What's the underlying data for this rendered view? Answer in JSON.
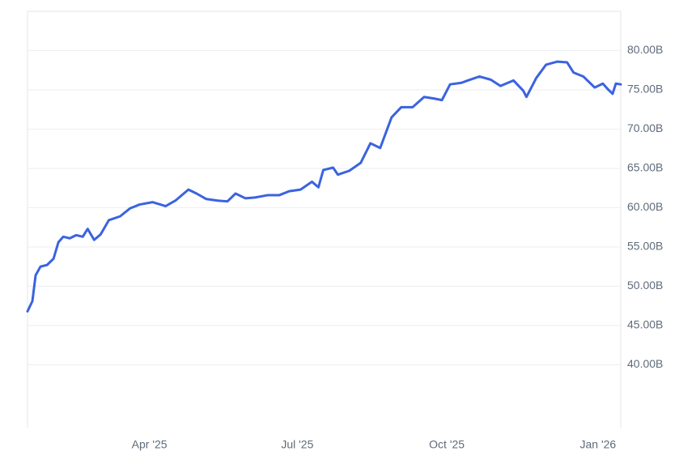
{
  "chart_data": {
    "type": "line",
    "x": [
      0,
      3,
      5,
      8,
      12,
      16,
      19,
      22,
      26,
      30,
      34,
      37,
      41,
      45,
      50,
      57,
      63,
      69,
      77,
      85,
      91,
      99,
      104,
      110,
      117,
      123,
      128,
      134,
      140,
      148,
      155,
      161,
      168,
      175,
      179,
      182,
      188,
      191,
      198,
      205,
      211,
      217,
      224,
      230,
      237,
      244,
      250,
      255,
      260,
      267,
      271,
      278,
      285,
      291,
      299,
      305,
      307,
      313,
      319,
      326,
      332,
      336,
      342,
      349,
      354,
      357,
      360,
      362,
      365
    ],
    "series": [
      {
        "color": "#3b63e0",
        "values": [
          46.8,
          48.1,
          51.4,
          52.5,
          52.7,
          53.5,
          55.6,
          56.3,
          56.1,
          56.5,
          56.3,
          57.3,
          55.9,
          56.6,
          58.4,
          58.9,
          59.9,
          60.4,
          60.7,
          60.2,
          60.9,
          62.3,
          61.8,
          61.1,
          60.9,
          60.8,
          61.8,
          61.2,
          61.3,
          61.6,
          61.6,
          62.1,
          62.3,
          63.3,
          62.6,
          64.8,
          65.1,
          64.2,
          64.7,
          65.7,
          68.2,
          67.6,
          71.5,
          72.8,
          72.8,
          74.1,
          73.9,
          73.7,
          75.7,
          75.9,
          76.2,
          76.7,
          76.3,
          75.5,
          76.2,
          74.9,
          74.1,
          76.5,
          78.2,
          78.6,
          78.5,
          77.2,
          76.7,
          75.3,
          75.8,
          75.1,
          74.5,
          75.8,
          75.7
        ]
      }
    ],
    "xlim": [
      0,
      365
    ],
    "xticks": [
      {
        "value": 75,
        "label": "Apr '25"
      },
      {
        "value": 166,
        "label": "Jul '25"
      },
      {
        "value": 258,
        "label": "Oct '25"
      },
      {
        "value": 351,
        "label": "Jan '26"
      }
    ],
    "ylim": [
      32,
      85
    ],
    "yticks": [
      {
        "value": 40,
        "label": "40.00B"
      },
      {
        "value": 45,
        "label": "45.00B"
      },
      {
        "value": 50,
        "label": "50.00B"
      },
      {
        "value": 55,
        "label": "55.00B"
      },
      {
        "value": 60,
        "label": "60.00B"
      },
      {
        "value": 65,
        "label": "65.00B"
      },
      {
        "value": 70,
        "label": "70.00B"
      },
      {
        "value": 75,
        "label": "75.00B"
      },
      {
        "value": 80,
        "label": "80.00B"
      }
    ],
    "grid": true
  }
}
